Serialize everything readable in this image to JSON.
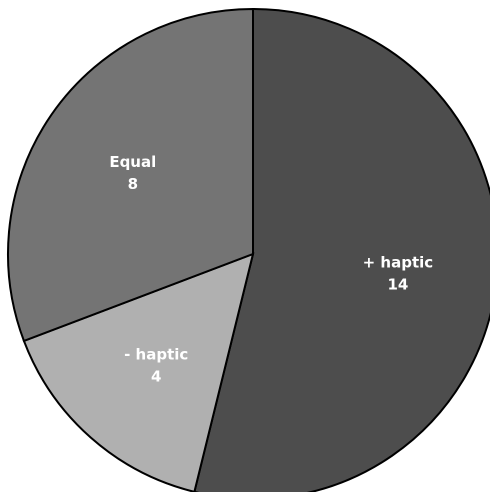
{
  "chart_data": {
    "type": "pie",
    "title": "",
    "slices": [
      {
        "label": "+ haptic",
        "value": 14,
        "value_label": "14",
        "color": "#4d4d4d"
      },
      {
        "label": "- haptic",
        "value": 4,
        "value_label": "4",
        "color": "#b0b0b0"
      },
      {
        "label": "Equal",
        "value": 8,
        "value_label": "8",
        "color": "#747474"
      }
    ],
    "start_angle_deg": 0,
    "direction": "clockwise",
    "legend": "none",
    "data_labels": "inside, category name and value"
  }
}
